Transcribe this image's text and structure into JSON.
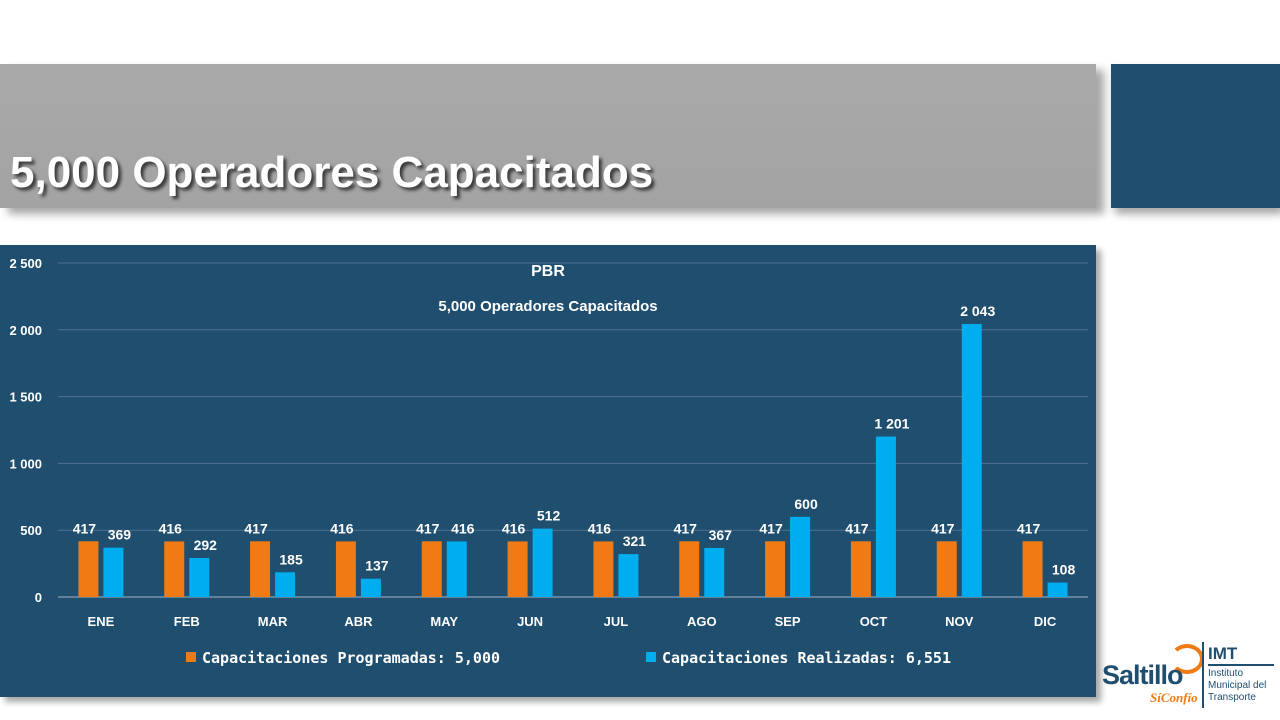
{
  "page": {
    "title": "5,000 Operadores Capacitados"
  },
  "colors": {
    "panel": "#1f4e6f",
    "programadas": "#f07b14",
    "realizadas": "#00aeef",
    "title_band": "#a6a6a6"
  },
  "chart_data": {
    "type": "bar",
    "title": "PBR",
    "subtitle": "5,000 Operadores Capacitados",
    "xlabel": "",
    "ylabel": "",
    "ylim": [
      0,
      2500
    ],
    "yticks": [
      "0",
      "500",
      "1 000",
      "1 500",
      "2 000",
      "2 500"
    ],
    "ytick_values": [
      0,
      500,
      1000,
      1500,
      2000,
      2500
    ],
    "grid": true,
    "legend_position": "bottom",
    "categories": [
      "ENE",
      "FEB",
      "MAR",
      "ABR",
      "MAY",
      "JUN",
      "JUL",
      "AGO",
      "SEP",
      "OCT",
      "NOV",
      "DIC"
    ],
    "series": [
      {
        "name": "Capacitaciones Programadas: 5,000",
        "color": "#f07b14",
        "values": [
          417,
          416,
          417,
          416,
          417,
          416,
          416,
          417,
          417,
          417,
          417,
          417
        ],
        "labels": [
          "417",
          "416",
          "417",
          "416",
          "417",
          "416",
          "416",
          "417",
          "417",
          "417",
          "417",
          "417"
        ]
      },
      {
        "name": "Capacitaciones Realizadas: 6,551",
        "color": "#00aeef",
        "values": [
          369,
          292,
          185,
          137,
          416,
          512,
          321,
          367,
          600,
          1201,
          2043,
          108
        ],
        "labels": [
          "369",
          "292",
          "185",
          "137",
          "416",
          "512",
          "321",
          "367",
          "600",
          "1 201",
          "2 043",
          "108"
        ]
      }
    ]
  },
  "logo": {
    "brand": "Saltillo",
    "tagline": "SíConfío",
    "org_short": "IMT",
    "org_lines": [
      "Instituto",
      "Municipal del",
      "Transporte"
    ]
  }
}
